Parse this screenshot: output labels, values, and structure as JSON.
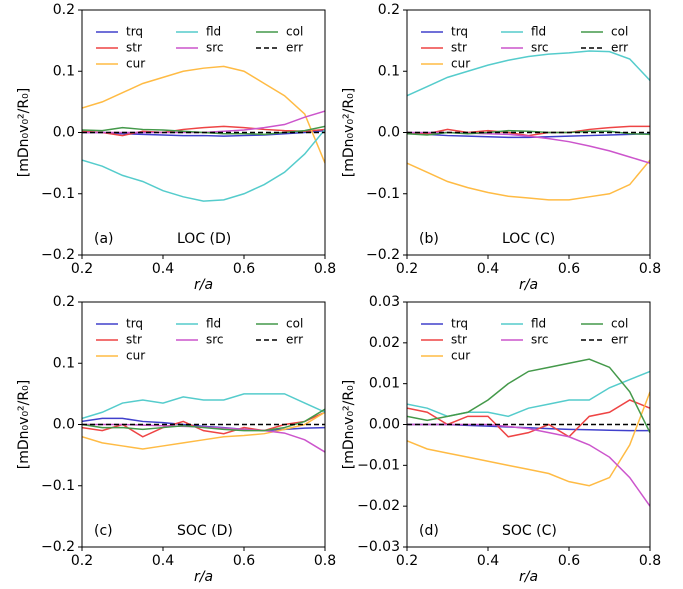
{
  "chart_data": [
    {
      "type": "line",
      "panel_label": "(a)",
      "annotation": "LOC (D)",
      "xlabel": "r/a",
      "ylabel": "[mDn₀v₀²/R₀]",
      "x": [
        0.2,
        0.25,
        0.3,
        0.35,
        0.4,
        0.45,
        0.5,
        0.55,
        0.6,
        0.65,
        0.7,
        0.75,
        0.8
      ],
      "xlim": [
        0.2,
        0.8
      ],
      "xticks": [
        0.2,
        0.4,
        0.6,
        0.8
      ],
      "ylim": [
        -0.2,
        0.2
      ],
      "yticks": [
        {
          "value": -0.2,
          "label": "−0.2"
        },
        {
          "value": -0.1,
          "label": "−0.1"
        },
        {
          "value": 0,
          "label": "0.0"
        },
        0.1,
        0.2
      ],
      "series": [
        {
          "name": "trq",
          "color": "#4040cc",
          "values": [
            0,
            0,
            -0.002,
            -0.003,
            -0.004,
            -0.005,
            -0.005,
            -0.006,
            -0.005,
            -0.004,
            -0.002,
            0,
            0.003
          ]
        },
        {
          "name": "str",
          "color": "#ee4444",
          "values": [
            0.002,
            0,
            -0.005,
            0.002,
            0,
            0.005,
            0.008,
            0.01,
            0.008,
            0.005,
            0.003,
            0.002,
            0.005
          ]
        },
        {
          "name": "cur",
          "color": "#ffbb44",
          "values": [
            0.04,
            0.05,
            0.065,
            0.08,
            0.09,
            0.1,
            0.105,
            0.108,
            0.1,
            0.08,
            0.06,
            0.03,
            -0.05
          ]
        },
        {
          "name": "fld",
          "color": "#55cccc",
          "values": [
            -0.045,
            -0.055,
            -0.07,
            -0.08,
            -0.095,
            -0.105,
            -0.112,
            -0.11,
            -0.1,
            -0.085,
            -0.065,
            -0.035,
            0.005
          ]
        },
        {
          "name": "src",
          "color": "#cc55cc",
          "values": [
            0,
            0,
            0,
            0,
            0,
            0,
            0,
            0.002,
            0.004,
            0.008,
            0.013,
            0.025,
            0.035
          ]
        },
        {
          "name": "col",
          "color": "#44994a",
          "values": [
            0.004,
            0.003,
            0.008,
            0.005,
            0.004,
            0.002,
            0,
            -0.002,
            -0.002,
            -0.003,
            0,
            0.003,
            0.01
          ]
        },
        {
          "name": "err",
          "color": "#000000",
          "linestyle": "dashed",
          "values": [
            0,
            0,
            0,
            0,
            0,
            0,
            0,
            0,
            0,
            0,
            0,
            0,
            0
          ]
        }
      ]
    },
    {
      "type": "line",
      "panel_label": "(b)",
      "annotation": "LOC (C)",
      "xlabel": "r/a",
      "ylabel": "[mDn₀v₀²/R₀]",
      "x": [
        0.2,
        0.25,
        0.3,
        0.35,
        0.4,
        0.45,
        0.5,
        0.55,
        0.6,
        0.65,
        0.7,
        0.75,
        0.8
      ],
      "xlim": [
        0.2,
        0.8
      ],
      "xticks": [
        0.2,
        0.4,
        0.6,
        0.8
      ],
      "ylim": [
        -0.2,
        0.2
      ],
      "yticks": [
        {
          "value": -0.2,
          "label": "−0.2"
        },
        {
          "value": -0.1,
          "label": "−0.1"
        },
        {
          "value": 0,
          "label": "0.0"
        },
        0.1,
        0.2
      ],
      "series": [
        {
          "name": "trq",
          "color": "#4040cc",
          "values": [
            0,
            -0.003,
            -0.005,
            -0.006,
            -0.007,
            -0.008,
            -0.008,
            -0.007,
            -0.006,
            -0.005,
            -0.004,
            -0.003,
            -0.002
          ]
        },
        {
          "name": "str",
          "color": "#ee4444",
          "values": [
            0,
            -0.002,
            0.005,
            0,
            0.003,
            0,
            -0.005,
            0,
            0,
            0.005,
            0.008,
            0.01,
            0.01
          ]
        },
        {
          "name": "cur",
          "color": "#ffbb44",
          "values": [
            -0.05,
            -0.065,
            -0.08,
            -0.09,
            -0.098,
            -0.104,
            -0.107,
            -0.11,
            -0.11,
            -0.105,
            -0.1,
            -0.085,
            -0.045
          ]
        },
        {
          "name": "fld",
          "color": "#55cccc",
          "values": [
            0.06,
            0.075,
            0.09,
            0.1,
            0.11,
            0.118,
            0.124,
            0.128,
            0.13,
            0.133,
            0.132,
            0.12,
            0.085
          ]
        },
        {
          "name": "src",
          "color": "#cc55cc",
          "values": [
            0,
            0,
            0,
            -0.001,
            -0.002,
            -0.003,
            -0.006,
            -0.01,
            -0.015,
            -0.022,
            -0.03,
            -0.04,
            -0.05
          ]
        },
        {
          "name": "col",
          "color": "#44994a",
          "values": [
            -0.002,
            -0.004,
            0,
            -0.002,
            0,
            0.003,
            0.002,
            0,
            0,
            0.002,
            0.002,
            -0.002,
            -0.003
          ]
        },
        {
          "name": "err",
          "color": "#000000",
          "linestyle": "dashed",
          "values": [
            0,
            0,
            0,
            0,
            0,
            0,
            0,
            0,
            0,
            0,
            0,
            0,
            0
          ]
        }
      ]
    },
    {
      "type": "line",
      "panel_label": "(c)",
      "annotation": "SOC (D)",
      "xlabel": "r/a",
      "ylabel": "[mDn₀v₀²/R₀]",
      "x": [
        0.2,
        0.25,
        0.3,
        0.35,
        0.4,
        0.45,
        0.5,
        0.55,
        0.6,
        0.65,
        0.7,
        0.75,
        0.8
      ],
      "xlim": [
        0.2,
        0.8
      ],
      "xticks": [
        0.2,
        0.4,
        0.6,
        0.8
      ],
      "ylim": [
        -0.2,
        0.2
      ],
      "yticks": [
        {
          "value": -0.2,
          "label": "−0.2"
        },
        {
          "value": -0.1,
          "label": "−0.1"
        },
        {
          "value": 0,
          "label": "0.0"
        },
        0.1,
        0.2
      ],
      "series": [
        {
          "name": "trq",
          "color": "#4040cc",
          "values": [
            0.005,
            0.01,
            0.01,
            0.005,
            0.003,
            0,
            -0.003,
            -0.005,
            -0.008,
            -0.01,
            -0.008,
            -0.006,
            -0.005
          ]
        },
        {
          "name": "str",
          "color": "#ee4444",
          "values": [
            -0.005,
            -0.01,
            0,
            -0.02,
            -0.005,
            0.005,
            -0.01,
            -0.015,
            -0.005,
            -0.01,
            0,
            0.005,
            0.02
          ]
        },
        {
          "name": "cur",
          "color": "#ffbb44",
          "values": [
            -0.02,
            -0.03,
            -0.035,
            -0.04,
            -0.035,
            -0.03,
            -0.025,
            -0.02,
            -0.018,
            -0.015,
            -0.008,
            0,
            0.02
          ]
        },
        {
          "name": "fld",
          "color": "#55cccc",
          "values": [
            0.01,
            0.02,
            0.035,
            0.04,
            0.035,
            0.045,
            0.04,
            0.04,
            0.05,
            0.05,
            0.05,
            0.035,
            0.02
          ]
        },
        {
          "name": "src",
          "color": "#cc55cc",
          "values": [
            0,
            0,
            0,
            -0.001,
            -0.002,
            -0.003,
            -0.004,
            -0.006,
            -0.008,
            -0.01,
            -0.014,
            -0.025,
            -0.045
          ]
        },
        {
          "name": "col",
          "color": "#44994a",
          "values": [
            0,
            -0.005,
            -0.005,
            -0.008,
            -0.005,
            -0.002,
            -0.005,
            -0.008,
            -0.01,
            -0.01,
            -0.005,
            0.005,
            0.025
          ]
        },
        {
          "name": "err",
          "color": "#000000",
          "linestyle": "dashed",
          "values": [
            0,
            0,
            0,
            0,
            0,
            0,
            0,
            0,
            0,
            0,
            0,
            0,
            0
          ]
        }
      ]
    },
    {
      "type": "line",
      "panel_label": "(d)",
      "annotation": "SOC (C)",
      "xlabel": "r/a",
      "ylabel": "[mDn₀v₀²/R₀]",
      "x": [
        0.2,
        0.25,
        0.3,
        0.35,
        0.4,
        0.45,
        0.5,
        0.55,
        0.6,
        0.65,
        0.7,
        0.75,
        0.8
      ],
      "xlim": [
        0.2,
        0.8
      ],
      "xticks": [
        0.2,
        0.4,
        0.6,
        0.8
      ],
      "ylim": [
        -0.03,
        0.03
      ],
      "yticks": [
        {
          "value": -0.03,
          "label": "−0.03"
        },
        {
          "value": -0.02,
          "label": "−0.02"
        },
        {
          "value": -0.01,
          "label": "−0.01"
        },
        {
          "value": 0,
          "label": "0.00"
        },
        {
          "value": 0.01,
          "label": "0.01"
        },
        {
          "value": 0.02,
          "label": "0.02"
        },
        {
          "value": 0.03,
          "label": "0.03"
        }
      ],
      "series": [
        {
          "name": "trq",
          "color": "#4040cc",
          "values": [
            0,
            0,
            0,
            -0.0002,
            -0.0004,
            -0.0006,
            -0.0008,
            -0.001,
            -0.0012,
            -0.0013,
            -0.0014,
            -0.0015,
            -0.0015
          ]
        },
        {
          "name": "str",
          "color": "#ee4444",
          "values": [
            0.004,
            0.003,
            0,
            0.002,
            0.002,
            -0.003,
            -0.002,
            0,
            -0.003,
            0.002,
            0.003,
            0.006,
            0.004
          ]
        },
        {
          "name": "cur",
          "color": "#ffbb44",
          "values": [
            -0.004,
            -0.006,
            -0.007,
            -0.008,
            -0.009,
            -0.01,
            -0.011,
            -0.012,
            -0.014,
            -0.015,
            -0.013,
            -0.005,
            0.008
          ]
        },
        {
          "name": "fld",
          "color": "#55cccc",
          "values": [
            0.005,
            0.004,
            0.002,
            0.003,
            0.003,
            0.002,
            0.004,
            0.005,
            0.006,
            0.006,
            0.009,
            0.011,
            0.013
          ]
        },
        {
          "name": "src",
          "color": "#cc55cc",
          "values": [
            0,
            0,
            0,
            0,
            0,
            -0.0005,
            -0.001,
            -0.002,
            -0.003,
            -0.005,
            -0.008,
            -0.013,
            -0.02
          ]
        },
        {
          "name": "col",
          "color": "#44994a",
          "values": [
            0.002,
            0.001,
            0.002,
            0.003,
            0.006,
            0.01,
            0.013,
            0.014,
            0.015,
            0.016,
            0.014,
            0.008,
            -0.002
          ]
        },
        {
          "name": "err",
          "color": "#000000",
          "linestyle": "dashed",
          "values": [
            0,
            0,
            0,
            0,
            0,
            0,
            0,
            0,
            0,
            0,
            0,
            0,
            0
          ]
        }
      ]
    }
  ]
}
